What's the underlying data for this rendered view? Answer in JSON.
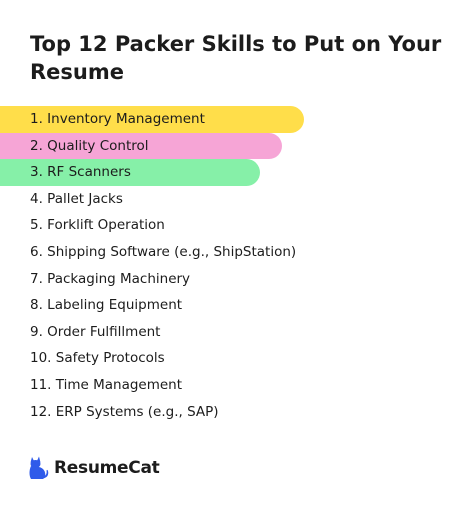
{
  "title": "Top 12 Packer Skills to Put on Your Resume",
  "skills": [
    "1. Inventory Management",
    "2. Quality Control",
    "3. RF Scanners",
    "4. Pallet Jacks",
    "5. Forklift Operation",
    "6. Shipping Software (e.g., ShipStation)",
    "7. Packaging Machinery",
    "8. Labeling Equipment",
    "9. Order Fulfillment",
    "10. Safety Protocols",
    "11. Time Management",
    "12. ERP Systems (e.g., SAP)"
  ],
  "highlight_colors": [
    "#ffde4a",
    "#f6a5d6",
    "#86f0a8"
  ],
  "brand": {
    "name": "ResumeCat",
    "icon": "cat-icon",
    "color": "#2f5bea"
  }
}
